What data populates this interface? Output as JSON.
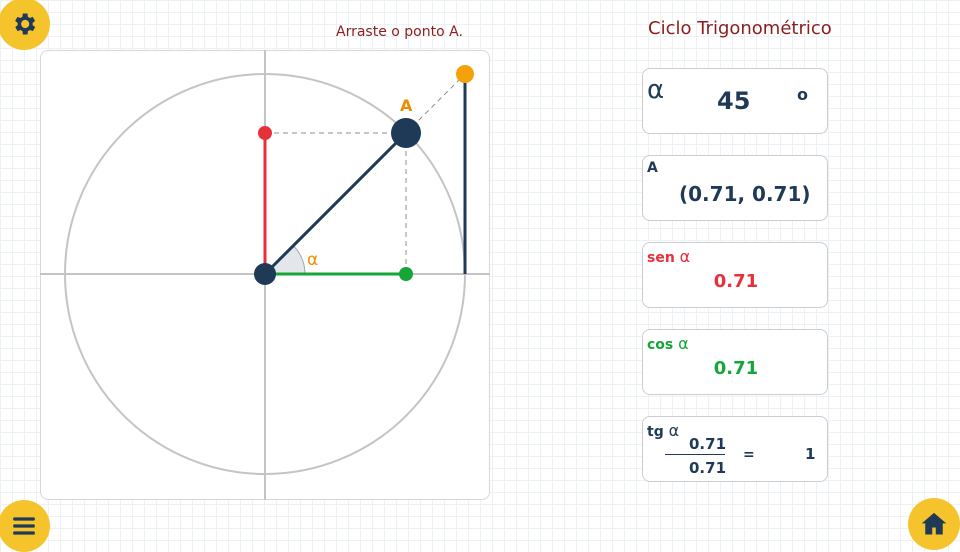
{
  "app": {
    "title": "Ciclo Trigonométrico",
    "instruction": "Arraste o ponto A."
  },
  "buttons": {
    "settings_icon": "gear-icon",
    "menu_icon": "hamburger-menu-icon",
    "home_icon": "home-icon"
  },
  "colors": {
    "accent": "#f5c42c",
    "title": "#8b1d1d",
    "navy": "#1e3a56",
    "sine": "#e8303a",
    "cosine": "#16a637",
    "tangent_point": "#f5a10a"
  },
  "diagram": {
    "point_label": "A",
    "angle_label": "α",
    "angle_degrees": 45
  },
  "cards": {
    "alpha": {
      "symbol": "α",
      "value": "45",
      "unit": "o"
    },
    "point": {
      "label": "A",
      "value": "(0.71, 0.71)"
    },
    "sin": {
      "label": "sen",
      "symbol": "α",
      "value": "0.71"
    },
    "cos": {
      "label": "cos",
      "symbol": "α",
      "value": "0.71"
    },
    "tan": {
      "label": "tg",
      "symbol": "α",
      "numerator": "0.71",
      "denominator": "0.71",
      "equals": "=",
      "result": "1"
    }
  }
}
